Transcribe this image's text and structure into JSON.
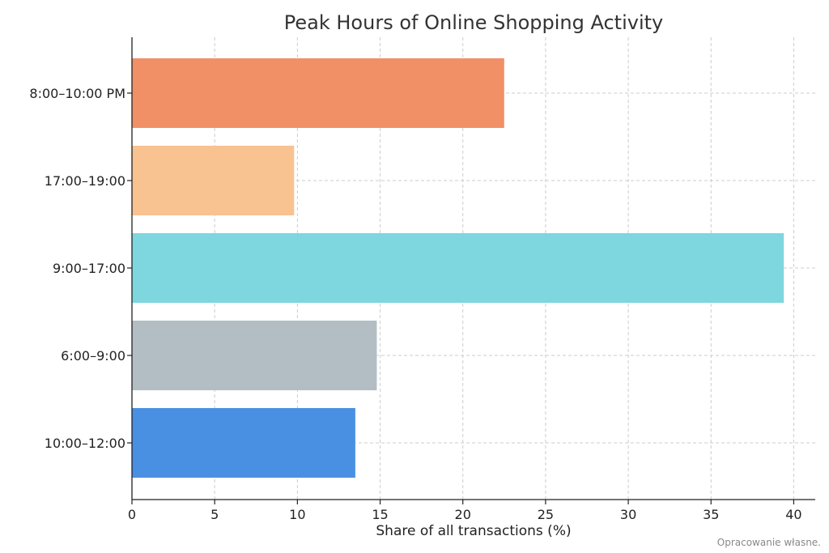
{
  "chart_data": {
    "type": "bar",
    "orientation": "horizontal",
    "title": "Peak Hours of Online Shopping Activity",
    "xlabel": "Share of all transactions (%)",
    "ylabel": "",
    "xlim": [
      0,
      41.3
    ],
    "xticks": [
      0,
      5,
      10,
      15,
      20,
      25,
      30,
      35,
      40
    ],
    "categories": [
      "10:00–12:00",
      "6:00–9:00",
      "9:00–17:00",
      "17:00–19:00",
      "8:00–10:00 PM"
    ],
    "values": [
      13.5,
      14.8,
      39.4,
      9.8,
      22.5
    ],
    "colors": [
      "#4a90e2",
      "#b2bec3",
      "#7ed6df",
      "#f8c291",
      "#f19066"
    ],
    "grid": true
  },
  "footer": {
    "source_note": "Opracowanie własne."
  }
}
